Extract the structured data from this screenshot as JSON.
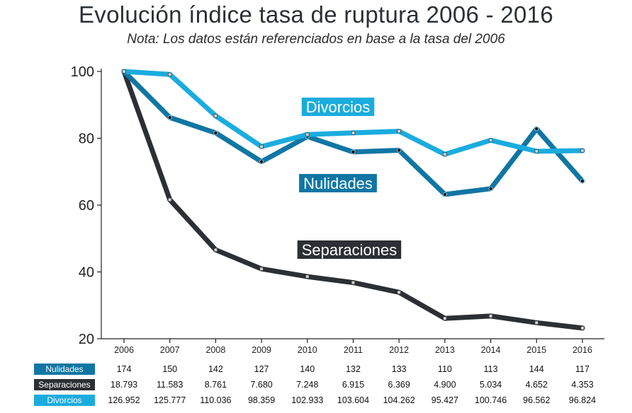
{
  "title": "Evolución índice tasa de ruptura 2006 - 2016",
  "subtitle": "Nota: Los datos están referenciados en base a la tasa del 2006",
  "colors": {
    "nulidades": "#0f76a4",
    "separaciones": "#2c2f33",
    "divorcios": "#1aacde"
  },
  "chart_data": {
    "type": "line",
    "title": "Evolución índice tasa de ruptura 2006 - 2016",
    "subtitle": "Nota: Los datos están referenciados en base a la tasa del 2006",
    "x": [
      "2006",
      "2007",
      "2008",
      "2009",
      "2010",
      "2011",
      "2012",
      "2013",
      "2014",
      "2015",
      "2016"
    ],
    "ylim": [
      20,
      100
    ],
    "yticks": [
      20,
      40,
      60,
      80,
      100
    ],
    "grid": false,
    "series": [
      {
        "name": "Divorcios",
        "key": "divorcios",
        "values": [
          100,
          99.1,
          86.7,
          77.5,
          81.1,
          81.6,
          82.1,
          75.2,
          79.4,
          76.1,
          76.3
        ]
      },
      {
        "name": "Nulidades",
        "key": "nulidades",
        "values": [
          100,
          86.2,
          81.6,
          73.0,
          80.5,
          75.9,
          76.4,
          63.2,
          64.9,
          82.8,
          67.2
        ]
      },
      {
        "name": "Separaciones",
        "key": "separaciones",
        "values": [
          100,
          61.6,
          46.6,
          40.9,
          38.6,
          36.8,
          33.9,
          26.1,
          26.8,
          24.8,
          23.2
        ]
      }
    ]
  },
  "table": {
    "rows": [
      {
        "key": "nulidades",
        "label": "Nulidades",
        "values": [
          "174",
          "150",
          "142",
          "127",
          "140",
          "132",
          "133",
          "110",
          "113",
          "144",
          "117"
        ]
      },
      {
        "key": "separaciones",
        "label": "Separaciones",
        "values": [
          "18.793",
          "11.583",
          "8.761",
          "7.680",
          "7.248",
          "6.915",
          "6.369",
          "4.900",
          "5.034",
          "4.652",
          "4.353"
        ]
      },
      {
        "key": "divorcios",
        "label": "Divorcios",
        "values": [
          "126.952",
          "125.777",
          "110.036",
          "98.359",
          "102.933",
          "103.604",
          "104.262",
          "95.427",
          "100.746",
          "96.562",
          "96.824"
        ]
      }
    ]
  }
}
